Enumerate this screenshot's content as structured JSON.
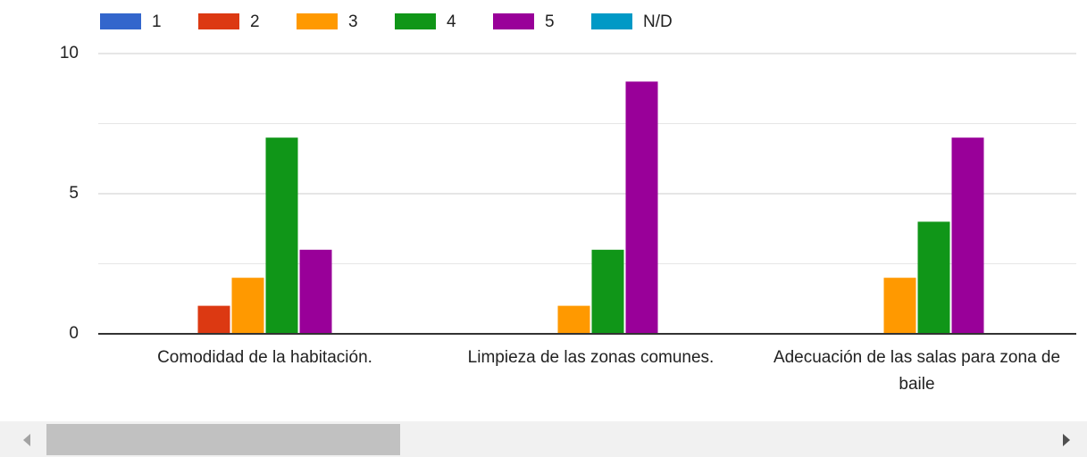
{
  "chart_data": {
    "type": "bar",
    "categories": [
      "Comodidad de la habitación.",
      "Limpieza de las zonas comunes.",
      "Adecuación de las salas para zona de baile"
    ],
    "series": [
      {
        "name": "1",
        "color": "#3366cc",
        "values": [
          0,
          0,
          0
        ]
      },
      {
        "name": "2",
        "color": "#dc3912",
        "values": [
          1,
          0,
          0
        ]
      },
      {
        "name": "3",
        "color": "#ff9900",
        "values": [
          2,
          1,
          2
        ]
      },
      {
        "name": "4",
        "color": "#109618",
        "values": [
          7,
          3,
          4
        ]
      },
      {
        "name": "5",
        "color": "#990099",
        "values": [
          3,
          9,
          7
        ]
      },
      {
        "name": "N/D",
        "color": "#0099c6",
        "values": [
          0,
          0,
          0
        ]
      }
    ],
    "ylim": [
      0,
      10
    ],
    "yticks": [
      0,
      5,
      10
    ],
    "minor_grid": [
      2.5,
      7.5
    ],
    "grid": true,
    "legend": "top"
  }
}
